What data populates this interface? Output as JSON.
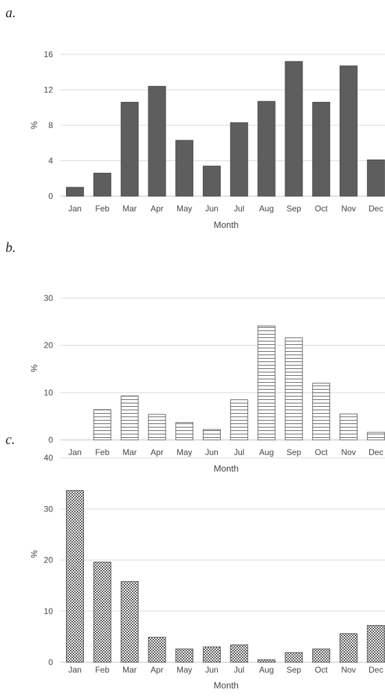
{
  "panels": [
    {
      "label": "a."
    },
    {
      "label": "b."
    },
    {
      "label": "c."
    }
  ],
  "chart_data": [
    {
      "type": "bar",
      "categories": [
        "Jan",
        "Feb",
        "Mar",
        "Apr",
        "May",
        "Jun",
        "Jul",
        "Aug",
        "Sep",
        "Oct",
        "Nov",
        "Dec"
      ],
      "values": [
        1.0,
        2.6,
        10.6,
        12.4,
        6.3,
        3.4,
        8.3,
        10.7,
        15.2,
        10.6,
        14.7,
        4.1
      ],
      "xlabel": "Month",
      "ylabel": "%",
      "ylim": [
        0,
        16
      ],
      "yticks": [
        0,
        4,
        8,
        12,
        16
      ],
      "grid": true,
      "fill": "#5e5e5e",
      "pattern": "solid"
    },
    {
      "type": "bar",
      "categories": [
        "Jan",
        "Feb",
        "Mar",
        "Apr",
        "May",
        "Jun",
        "Jul",
        "Aug",
        "Sep",
        "Oct",
        "Nov",
        "Dec"
      ],
      "values": [
        0,
        6.4,
        9.3,
        5.4,
        3.7,
        2.2,
        8.5,
        24.1,
        21.6,
        12.0,
        5.5,
        1.6
      ],
      "xlabel": "Month",
      "ylabel": "%",
      "ylim": [
        0,
        30
      ],
      "yticks": [
        0,
        10,
        20,
        30
      ],
      "grid": true,
      "fill": "#666666",
      "pattern": "horizontal-lines"
    },
    {
      "type": "bar",
      "categories": [
        "Jan",
        "Feb",
        "Mar",
        "Apr",
        "May",
        "Jun",
        "Jul",
        "Aug",
        "Sep",
        "Oct",
        "Nov",
        "Dec"
      ],
      "values": [
        33.6,
        19.6,
        15.8,
        4.9,
        2.6,
        3.0,
        3.4,
        0.5,
        1.9,
        2.6,
        5.6,
        7.2
      ],
      "xlabel": "Month",
      "ylabel": "%",
      "ylim": [
        0,
        40
      ],
      "yticks": [
        0,
        10,
        20,
        30,
        40
      ],
      "grid": true,
      "fill": "#555555",
      "pattern": "checker"
    }
  ]
}
